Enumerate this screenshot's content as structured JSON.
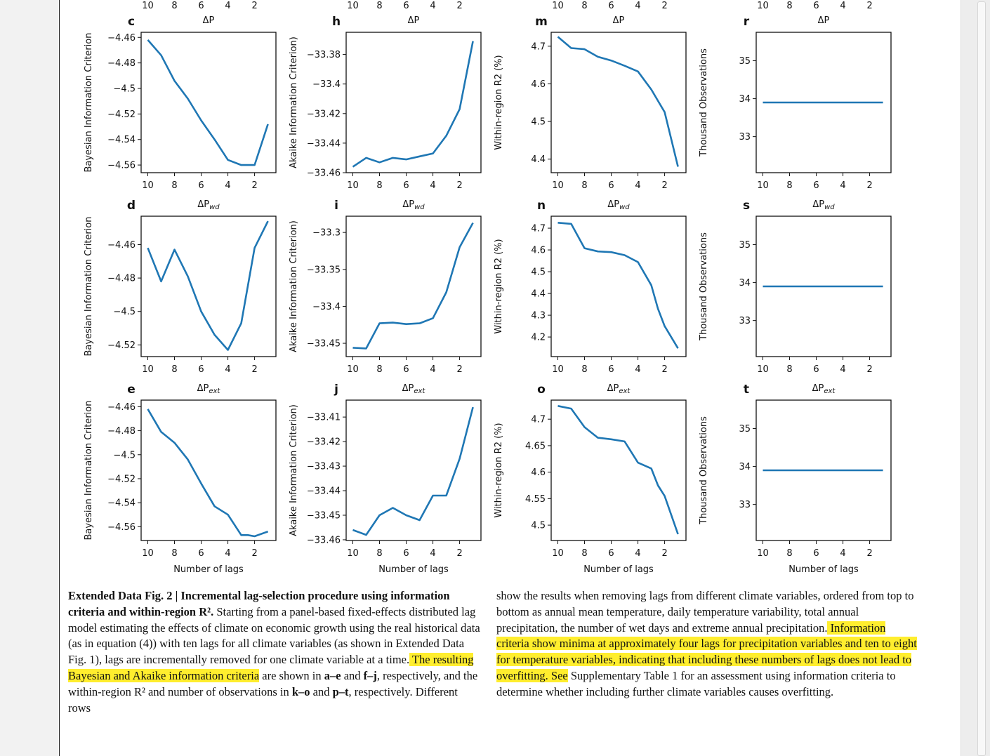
{
  "figure": {
    "columns": [
      {
        "panels": [
          "c",
          "d",
          "e"
        ],
        "ylabel": "Bayesian Information Criterion"
      },
      {
        "panels": [
          "h",
          "i",
          "j"
        ],
        "ylabel": "Akaike Information Criterion)"
      },
      {
        "panels": [
          "m",
          "n",
          "o"
        ],
        "ylabel": "Within-region R2 (%)"
      },
      {
        "panels": [
          "r",
          "s",
          "t"
        ],
        "ylabel": "Thousand Observations"
      }
    ],
    "row_titles": [
      "ΔP",
      "ΔPwd",
      "ΔPext"
    ],
    "xlabel": "Number of lags",
    "x_tick_labels": [
      "10",
      "8",
      "6",
      "4",
      "2"
    ],
    "line_color": "#1f77b4"
  },
  "chart_data": [
    {
      "panel": "c",
      "type": "line",
      "title": "ΔP",
      "xlabel": "",
      "ylabel": "Bayesian Information Criterion",
      "x": [
        10,
        9,
        8,
        7,
        6,
        5,
        4,
        3,
        2,
        1
      ],
      "values": [
        -4.462,
        -4.474,
        -4.494,
        -4.508,
        -4.525,
        -4.54,
        -4.556,
        -4.56,
        -4.56,
        -4.528
      ],
      "ylim": [
        -4.566,
        -4.456
      ],
      "yticks": [
        -4.46,
        -4.48,
        -4.5,
        -4.52,
        -4.54,
        -4.56
      ],
      "xlim": [
        10.5,
        0.4
      ],
      "xticks": [
        10,
        8,
        6,
        4,
        2
      ]
    },
    {
      "panel": "d",
      "type": "line",
      "title": "ΔPwd",
      "xlabel": "",
      "ylabel": "Bayesian Information Criterion",
      "x": [
        10,
        9,
        8,
        7,
        6,
        5,
        4,
        3,
        2,
        1
      ],
      "values": [
        -4.462,
        -4.482,
        -4.463,
        -4.479,
        -4.5,
        -4.514,
        -4.523,
        -4.507,
        -4.462,
        -4.446
      ],
      "ylim": [
        -4.527,
        -4.443
      ],
      "yticks": [
        -4.46,
        -4.48,
        -4.5,
        -4.52
      ],
      "xlim": [
        10.5,
        0.4
      ],
      "xticks": [
        10,
        8,
        6,
        4,
        2
      ]
    },
    {
      "panel": "e",
      "type": "line",
      "title": "ΔPext",
      "xlabel": "Number of lags",
      "ylabel": "Bayesian Information Criterion",
      "x": [
        10,
        9,
        8,
        7,
        6,
        5,
        4,
        3,
        2.5,
        2,
        1
      ],
      "values": [
        -4.462,
        -4.481,
        -4.49,
        -4.504,
        -4.524,
        -4.543,
        -4.55,
        -4.567,
        -4.567,
        -4.568,
        -4.564
      ],
      "ylim": [
        -4.5715,
        -4.4545
      ],
      "yticks": [
        -4.46,
        -4.48,
        -4.5,
        -4.52,
        -4.54,
        -4.56
      ],
      "xlim": [
        10.5,
        0.4
      ],
      "xticks": [
        10,
        8,
        6,
        4,
        2
      ]
    },
    {
      "panel": "h",
      "type": "line",
      "title": "ΔP",
      "xlabel": "",
      "ylabel": "Akaike Information Criterion)",
      "x": [
        10,
        9,
        8,
        7,
        6,
        5,
        4,
        3,
        2,
        1
      ],
      "values": [
        -33.456,
        -33.45,
        -33.453,
        -33.45,
        -33.451,
        -33.449,
        -33.447,
        -33.435,
        -33.417,
        -33.371
      ],
      "ylim": [
        -33.46,
        -33.365
      ],
      "yticks": [
        -33.38,
        -33.4,
        -33.42,
        -33.44,
        -33.46
      ],
      "xlim": [
        10.5,
        0.4
      ],
      "xticks": [
        10,
        8,
        6,
        4,
        2
      ]
    },
    {
      "panel": "i",
      "type": "line",
      "title": "ΔPwd",
      "xlabel": "",
      "ylabel": "Akaike Information Criterion)",
      "x": [
        10,
        9,
        8,
        7,
        6,
        5,
        4,
        3,
        2,
        1
      ],
      "values": [
        -33.456,
        -33.457,
        -33.423,
        -33.422,
        -33.424,
        -33.423,
        -33.416,
        -33.381,
        -33.32,
        -33.287
      ],
      "ylim": [
        -33.468,
        -33.278
      ],
      "yticks": [
        -33.3,
        -33.35,
        -33.4,
        -33.45
      ],
      "xlim": [
        10.5,
        0.4
      ],
      "xticks": [
        10,
        8,
        6,
        4,
        2
      ]
    },
    {
      "panel": "j",
      "type": "line",
      "title": "ΔPext",
      "xlabel": "Number of lags",
      "ylabel": "Akaike Information Criterion)",
      "x": [
        10,
        9,
        8,
        7,
        6,
        5,
        4,
        3,
        2,
        1
      ],
      "values": [
        -33.456,
        -33.458,
        -33.45,
        -33.447,
        -33.45,
        -33.452,
        -33.442,
        -33.442,
        -33.427,
        -33.406
      ],
      "ylim": [
        -33.4603,
        -33.4031
      ],
      "yticks": [
        -33.41,
        -33.42,
        -33.43,
        -33.44,
        -33.45,
        -33.46
      ],
      "xlim": [
        10.5,
        0.4
      ],
      "xticks": [
        10,
        8,
        6,
        4,
        2
      ]
    },
    {
      "panel": "m",
      "type": "line",
      "title": "ΔP",
      "xlabel": "",
      "ylabel": "Within-region R2 (%)",
      "x": [
        10,
        9,
        8,
        7,
        6,
        5,
        4,
        3,
        2.5,
        2,
        1
      ],
      "values": [
        4.725,
        4.695,
        4.692,
        4.672,
        4.662,
        4.648,
        4.633,
        4.585,
        4.555,
        4.525,
        4.38
      ],
      "ylim": [
        4.364,
        4.737
      ],
      "yticks": [
        4.4,
        4.5,
        4.6,
        4.7
      ],
      "xlim": [
        10.5,
        0.4
      ],
      "xticks": [
        10,
        8,
        6,
        4,
        2
      ]
    },
    {
      "panel": "n",
      "type": "line",
      "title": "ΔPwd",
      "xlabel": "",
      "ylabel": "Within-region R2 (%)",
      "x": [
        10,
        9,
        8,
        7,
        6,
        5,
        4,
        3,
        2.5,
        2,
        1
      ],
      "values": [
        4.725,
        4.72,
        4.608,
        4.593,
        4.59,
        4.576,
        4.544,
        4.438,
        4.33,
        4.25,
        4.148
      ],
      "ylim": [
        4.11,
        4.755
      ],
      "yticks": [
        4.2,
        4.3,
        4.4,
        4.5,
        4.6,
        4.7
      ],
      "xlim": [
        10.5,
        0.4
      ],
      "xticks": [
        10,
        8,
        6,
        4,
        2
      ]
    },
    {
      "panel": "o",
      "type": "line",
      "title": "ΔPext",
      "xlabel": "Number of lags",
      "ylabel": "Within-region R2 (%)",
      "x": [
        10,
        9,
        8,
        7,
        6,
        5,
        4,
        3,
        2.5,
        2,
        1
      ],
      "values": [
        4.725,
        4.72,
        4.685,
        4.665,
        4.662,
        4.658,
        4.618,
        4.607,
        4.575,
        4.555,
        4.483
      ],
      "ylim": [
        4.471,
        4.736
      ],
      "yticks": [
        4.5,
        4.55,
        4.6,
        4.65,
        4.7
      ],
      "xlim": [
        10.5,
        0.4
      ],
      "xticks": [
        10,
        8,
        6,
        4,
        2
      ]
    },
    {
      "panel": "r",
      "type": "line",
      "title": "ΔP",
      "xlabel": "",
      "ylabel": "Thousand Observations",
      "x": [
        10,
        1
      ],
      "values": [
        33.9,
        33.9
      ],
      "ylim": [
        32.05,
        35.75
      ],
      "yticks": [
        33,
        34,
        35
      ],
      "xlim": [
        10.5,
        0.4
      ],
      "xticks": [
        10,
        8,
        6,
        4,
        2
      ]
    },
    {
      "panel": "s",
      "type": "line",
      "title": "ΔPwd",
      "xlabel": "",
      "ylabel": "Thousand Observations",
      "x": [
        10,
        1
      ],
      "values": [
        33.9,
        33.9
      ],
      "ylim": [
        32.05,
        35.75
      ],
      "yticks": [
        33,
        34,
        35
      ],
      "xlim": [
        10.5,
        0.4
      ],
      "xticks": [
        10,
        8,
        6,
        4,
        2
      ]
    },
    {
      "panel": "t",
      "type": "line",
      "title": "ΔPext",
      "xlabel": "Number of lags",
      "ylabel": "Thousand Observations",
      "x": [
        10,
        1
      ],
      "values": [
        33.9,
        33.9
      ],
      "ylim": [
        32.05,
        35.75
      ],
      "yticks": [
        33,
        34,
        35
      ],
      "xlim": [
        10.5,
        0.4
      ],
      "xticks": [
        10,
        8,
        6,
        4,
        2
      ]
    }
  ],
  "caption": {
    "fig_label": "Extended Data Fig. 2 | Incremental lag-selection procedure using information criteria and within-region R².",
    "left_1": " Starting from a panel-based fixed-effects distributed lag model estimating the effects of climate on economic growth using the real historical data (as in equation (4)) with ten lags for all climate variables (as shown in Extended Data Fig. 1), lags are incrementally removed for one climate variable at a time.",
    "left_hl": " The resulting Bayesian and Akaike information criteria",
    "left_2": " are shown in ",
    "ref_ae": "a–e",
    "and_1": " and ",
    "ref_fj": "f–j",
    "left_3": ", respectively, and the within-region R² and number of observations in ",
    "ref_ko": "k–o",
    "and_2": " and ",
    "ref_pt": "p–t",
    "left_4": ", respectively. Different rows",
    "right_1": "show the results when removing lags from different climate variables, ordered from top to bottom as annual mean temperature, daily temperature variability, total annual precipitation, the number of wet days and extreme annual precipitation.",
    "right_hl": " Information criteria show minima at approximately four lags for precipitation variables and ten to eight for temperature variables, indicating that including these numbers of lags does not lead to overfitting. See",
    "right_2": " Supplementary Table 1 for an assessment using information criteria to determine whether including further climate variables causes overfitting."
  }
}
